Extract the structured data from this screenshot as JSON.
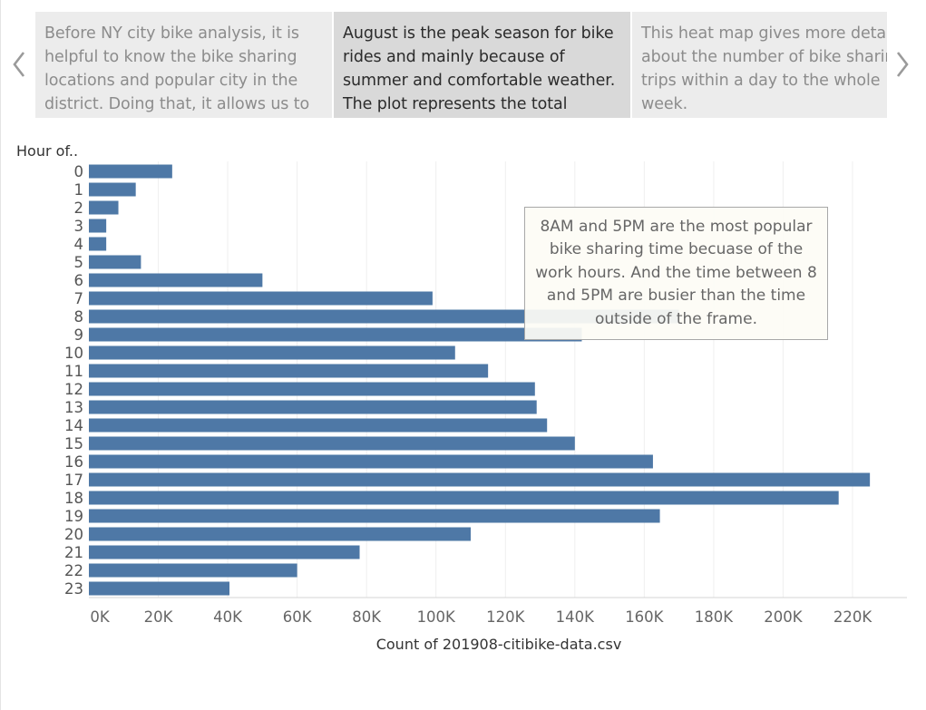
{
  "story": {
    "points": [
      {
        "text": "Before NY city bike analysis, it is helpful to know the bike sharing locations and popular city in the district. Doing that, it allows us to",
        "selected": false
      },
      {
        "text": "August is the peak season for bike rides and mainly because of summer and comfortable weather. The plot represents the total",
        "selected": true
      },
      {
        "text": "This heat map gives more detail about the number of bike sharing trips within a day to  the whole week.",
        "selected": false
      }
    ],
    "prev_icon": "chevron-left-icon",
    "next_icon": "chevron-right-icon"
  },
  "chart_data": {
    "type": "bar",
    "orientation": "horizontal",
    "ylabel": "Hour of..",
    "xlabel": "Count of 201908-citibike-data.csv",
    "categories": [
      "0",
      "1",
      "2",
      "3",
      "4",
      "5",
      "6",
      "7",
      "8",
      "9",
      "10",
      "11",
      "12",
      "13",
      "14",
      "15",
      "16",
      "17",
      "18",
      "19",
      "20",
      "21",
      "22",
      "23"
    ],
    "values": [
      24000,
      13500,
      8500,
      5000,
      5000,
      15000,
      50000,
      99000,
      170000,
      142000,
      105500,
      115000,
      128500,
      129000,
      132000,
      140000,
      162500,
      225000,
      216000,
      164500,
      110000,
      78000,
      60000,
      40500
    ],
    "xlim": [
      0,
      235000
    ],
    "xticks": [
      0,
      20000,
      40000,
      60000,
      80000,
      100000,
      120000,
      140000,
      160000,
      180000,
      200000,
      220000
    ],
    "xtick_labels": [
      "0K",
      "20K",
      "40K",
      "60K",
      "80K",
      "100K",
      "120K",
      "140K",
      "160K",
      "180K",
      "200K",
      "220K"
    ],
    "grid": true,
    "bar_color": "#4e78a6"
  },
  "annotation": {
    "text": "8AM and 5PM are the most popular bike sharing time becuase of the work hours.  And the time between 8 and 5PM are busier than the time outside of the frame."
  }
}
